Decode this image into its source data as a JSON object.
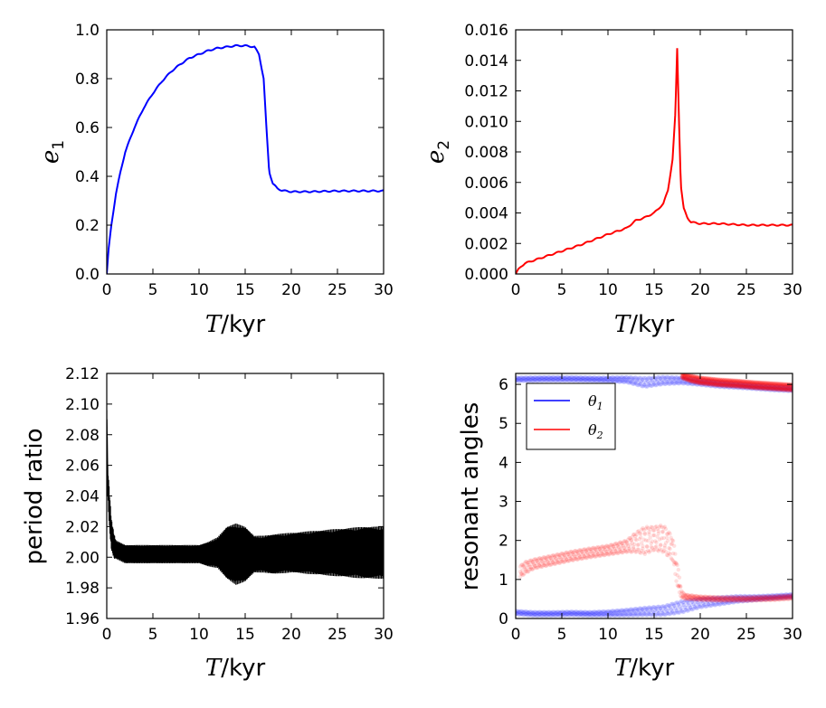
{
  "chart_data": [
    {
      "type": "line",
      "xlabel": "T/kyr",
      "ylabel": "e1",
      "xlim": [
        0,
        30
      ],
      "ylim": [
        0,
        1.0
      ],
      "xticks": [
        "0",
        "5",
        "10",
        "15",
        "20",
        "25",
        "30"
      ],
      "yticks": [
        "0.0",
        "0.2",
        "0.4",
        "0.6",
        "0.8",
        "1.0"
      ],
      "series": [
        {
          "color": "#0000ff",
          "x": [
            0,
            0.2,
            0.5,
            1,
            1.5,
            2,
            3,
            4,
            5,
            6,
            7,
            8,
            9,
            10,
            11,
            12,
            13,
            14,
            15,
            16,
            16.5,
            17,
            17.3,
            17.6,
            18,
            18.5,
            19,
            20,
            22,
            25,
            28,
            30
          ],
          "y": [
            0,
            0.1,
            0.2,
            0.33,
            0.42,
            0.5,
            0.6,
            0.68,
            0.74,
            0.79,
            0.83,
            0.86,
            0.885,
            0.9,
            0.915,
            0.925,
            0.93,
            0.935,
            0.935,
            0.93,
            0.9,
            0.8,
            0.6,
            0.42,
            0.37,
            0.35,
            0.342,
            0.337,
            0.337,
            0.34,
            0.34,
            0.34
          ]
        }
      ]
    },
    {
      "type": "line",
      "xlabel": "T/kyr",
      "ylabel": "e2",
      "xlim": [
        0,
        30
      ],
      "ylim": [
        0,
        0.016
      ],
      "xticks": [
        "0",
        "5",
        "10",
        "15",
        "20",
        "25",
        "30"
      ],
      "yticks": [
        "0.000",
        "0.002",
        "0.004",
        "0.006",
        "0.008",
        "0.010",
        "0.012",
        "0.014",
        "0.016"
      ],
      "series": [
        {
          "color": "#ff0000",
          "x": [
            0,
            0.3,
            0.6,
            1,
            2,
            3,
            5,
            7,
            10,
            12,
            13,
            14,
            15,
            16,
            16.5,
            17,
            17.3,
            17.5,
            17.7,
            17.9,
            18.2,
            18.6,
            19,
            20,
            22,
            25,
            28,
            30
          ],
          "y": [
            0,
            0.0003,
            0.0005,
            0.0007,
            0.0009,
            0.0011,
            0.0015,
            0.0019,
            0.0026,
            0.003,
            0.0035,
            0.0037,
            0.004,
            0.0046,
            0.0055,
            0.0075,
            0.0105,
            0.0148,
            0.01,
            0.0058,
            0.0043,
            0.0037,
            0.0034,
            0.0033,
            0.0033,
            0.0032,
            0.0032,
            0.0032
          ]
        }
      ]
    },
    {
      "type": "line",
      "xlabel": "T/kyr",
      "ylabel": "period ratio",
      "xlim": [
        0,
        30
      ],
      "ylim": [
        1.96,
        2.12
      ],
      "xticks": [
        "0",
        "5",
        "10",
        "15",
        "20",
        "25",
        "30"
      ],
      "yticks": [
        "1.96",
        "1.98",
        "2.00",
        "2.02",
        "2.04",
        "2.06",
        "2.08",
        "2.10",
        "2.12"
      ],
      "series": [
        {
          "color": "#000000",
          "x": [
            0,
            0.1,
            0.3,
            0.5,
            0.8,
            1,
            2,
            4,
            6,
            8,
            10,
            11,
            12,
            13,
            14,
            15,
            16,
            17,
            18,
            20,
            22,
            24,
            26,
            28,
            30
          ],
          "y": [
            2.09,
            2.05,
            2.03,
            2.015,
            2.007,
            2.005,
            2.002,
            2.002,
            2.002,
            2.002,
            2.002,
            2.002,
            2.003,
            2.003,
            2.002,
            2.002,
            2.002,
            2.002,
            2.002,
            2.003,
            2.003,
            2.003,
            2.003,
            2.003,
            2.003
          ],
          "band": [
            0.008,
            0.01,
            0.012,
            0.01,
            0.008,
            0.006,
            0.006,
            0.006,
            0.006,
            0.006,
            0.006,
            0.008,
            0.01,
            0.017,
            0.02,
            0.018,
            0.012,
            0.012,
            0.013,
            0.013,
            0.014,
            0.015,
            0.016,
            0.017,
            0.017
          ]
        }
      ]
    },
    {
      "type": "scatter",
      "xlabel": "T/kyr",
      "ylabel": "resonant angles",
      "xlim": [
        0,
        30
      ],
      "ylim": [
        0,
        6.28
      ],
      "xticks": [
        "0",
        "5",
        "10",
        "15",
        "20",
        "25",
        "30"
      ],
      "yticks": [
        "0",
        "1",
        "2",
        "3",
        "4",
        "5",
        "6"
      ],
      "legend": {
        "position": "upper-left",
        "entries": [
          "θ1",
          "θ2"
        ]
      },
      "series": [
        {
          "name": "θ1",
          "color": "#0000ff",
          "segments": [
            {
              "x": [
                0,
                2,
                4,
                6,
                8,
                10,
                12,
                14,
                16,
                18,
                20,
                22,
                24,
                26,
                28,
                30
              ],
              "y": [
                0.15,
                0.12,
                0.12,
                0.13,
                0.12,
                0.13,
                0.15,
                0.18,
                0.2,
                0.3,
                0.4,
                0.45,
                0.5,
                0.52,
                0.55,
                0.58
              ],
              "spread": [
                0.05,
                0.05,
                0.05,
                0.05,
                0.05,
                0.06,
                0.08,
                0.1,
                0.12,
                0.15,
                0.12,
                0.1,
                0.08,
                0.06,
                0.05,
                0.05
              ]
            },
            {
              "x": [
                0,
                3,
                6,
                9,
                12,
                14,
                16,
                18,
                20,
                22,
                25,
                28,
                30
              ],
              "y": [
                6.13,
                6.14,
                6.14,
                6.13,
                6.12,
                6.05,
                6.1,
                6.1,
                6.05,
                6.0,
                5.95,
                5.9,
                5.88
              ],
              "spread": [
                0.05,
                0.05,
                0.05,
                0.05,
                0.07,
                0.12,
                0.1,
                0.08,
                0.07,
                0.07,
                0.06,
                0.06,
                0.06
              ]
            }
          ]
        },
        {
          "name": "θ2",
          "color": "#ff0000",
          "segments": [
            {
              "x": [
                0.5,
                1,
                2,
                4,
                6,
                8,
                10,
                12,
                13,
                14,
                15,
                16,
                17,
                17.6,
                18,
                18.5,
                20,
                22,
                25,
                28,
                30
              ],
              "y": [
                1.2,
                1.3,
                1.4,
                1.5,
                1.6,
                1.68,
                1.75,
                1.85,
                1.95,
                2.0,
                2.05,
                2.05,
                1.8,
                1.0,
                0.6,
                0.55,
                0.52,
                0.5,
                0.5,
                0.52,
                0.55
              ],
              "spread": [
                0.15,
                0.15,
                0.12,
                0.12,
                0.12,
                0.12,
                0.12,
                0.15,
                0.25,
                0.35,
                0.3,
                0.35,
                0.3,
                0.3,
                0.08,
                0.06,
                0.05,
                0.05,
                0.05,
                0.05,
                0.05
              ]
            },
            {
              "x": [
                18,
                19,
                20,
                22,
                24,
                26,
                28,
                30
              ],
              "y": [
                6.22,
                6.15,
                6.1,
                6.05,
                6.02,
                5.98,
                5.95,
                5.92
              ],
              "spread": [
                0.06,
                0.08,
                0.08,
                0.08,
                0.08,
                0.08,
                0.08,
                0.08
              ]
            }
          ]
        }
      ]
    }
  ]
}
